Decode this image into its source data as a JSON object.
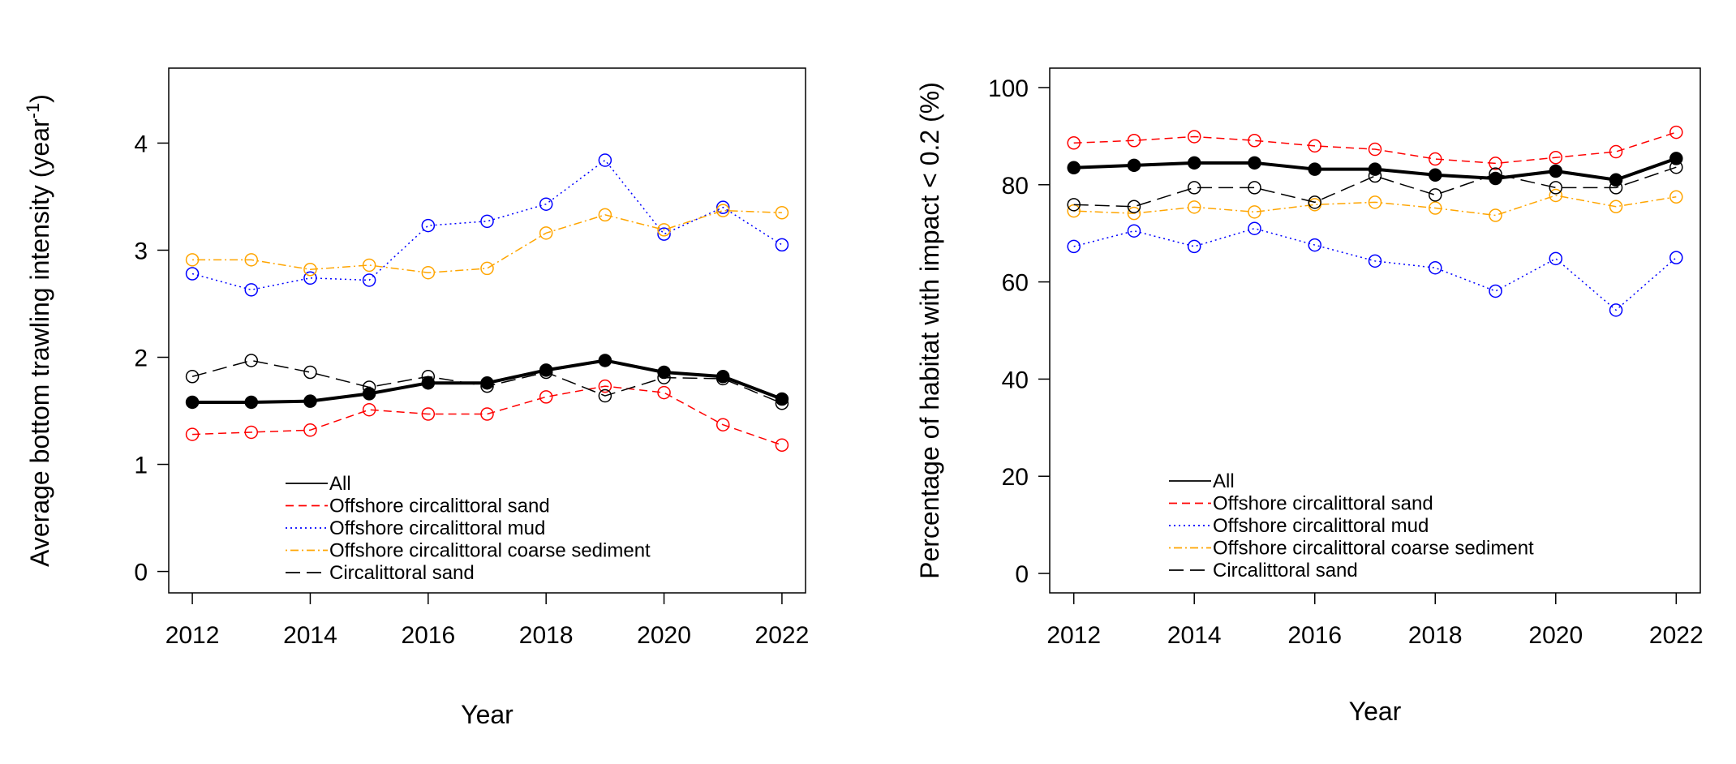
{
  "chart_data": [
    {
      "type": "line",
      "title": "",
      "xlabel": "Year",
      "ylabel": "Average bottom trawling intensity (year",
      "ylabel_sup": "-1",
      "ylabel_close": ")",
      "xlim": [
        2011.6,
        2022.4
      ],
      "ylim": [
        -0.2,
        4.7
      ],
      "xticks": [
        2012,
        2014,
        2016,
        2018,
        2020,
        2022
      ],
      "yticks": [
        0,
        1,
        2,
        3,
        4
      ],
      "legend_position": "bottom-center",
      "x": [
        2012,
        2013,
        2014,
        2015,
        2016,
        2017,
        2018,
        2019,
        2020,
        2021,
        2022
      ],
      "series": [
        {
          "name": "All",
          "color": "#000000",
          "dash": "solid",
          "width": 4,
          "marker": "filled-circle",
          "values": [
            1.58,
            1.58,
            1.59,
            1.66,
            1.76,
            1.76,
            1.88,
            1.97,
            1.86,
            1.82,
            1.61
          ]
        },
        {
          "name": "Offshore circalittoral sand",
          "color": "#ff0000",
          "dash": "dashed",
          "width": 1.5,
          "marker": "open-circle",
          "values": [
            1.28,
            1.3,
            1.32,
            1.51,
            1.47,
            1.47,
            1.63,
            1.73,
            1.67,
            1.37,
            1.18
          ]
        },
        {
          "name": "Offshore circalittoral mud",
          "color": "#0000ff",
          "dash": "dotted",
          "width": 1.5,
          "marker": "open-circle",
          "values": [
            2.78,
            2.63,
            2.74,
            2.72,
            3.23,
            3.27,
            3.43,
            3.84,
            3.15,
            3.4,
            3.05
          ]
        },
        {
          "name": "Offshore circalittoral coarse sediment",
          "color": "#ffa500",
          "dash": "dotdash",
          "width": 1.5,
          "marker": "open-circle",
          "values": [
            2.91,
            2.91,
            2.82,
            2.86,
            2.79,
            2.83,
            3.16,
            3.33,
            3.19,
            3.37,
            3.35
          ]
        },
        {
          "name": "Circalittoral sand",
          "color": "#000000",
          "dash": "longdash",
          "width": 1.5,
          "marker": "open-circle",
          "values": [
            1.82,
            1.97,
            1.86,
            1.72,
            1.82,
            1.73,
            1.86,
            1.64,
            1.81,
            1.8,
            1.57
          ]
        }
      ]
    },
    {
      "type": "line",
      "title": "",
      "xlabel": "Year",
      "ylabel": "Percentage of habitat with impact < 0.2 (%)",
      "xlim": [
        2011.6,
        2022.4
      ],
      "ylim": [
        -4,
        104
      ],
      "xticks": [
        2012,
        2014,
        2016,
        2018,
        2020,
        2022
      ],
      "yticks": [
        0,
        20,
        40,
        60,
        80,
        100
      ],
      "legend_position": "bottom-center",
      "x": [
        2012,
        2013,
        2014,
        2015,
        2016,
        2017,
        2018,
        2019,
        2020,
        2021,
        2022
      ],
      "series": [
        {
          "name": "All",
          "color": "#000000",
          "dash": "solid",
          "width": 4,
          "marker": "filled-circle",
          "values": [
            83.5,
            84.0,
            84.5,
            84.5,
            83.2,
            83.2,
            82.0,
            81.3,
            82.8,
            81.0,
            85.4
          ]
        },
        {
          "name": "Offshore circalittoral sand",
          "color": "#ff0000",
          "dash": "dashed",
          "width": 1.5,
          "marker": "open-circle",
          "values": [
            88.6,
            89.1,
            89.9,
            89.1,
            88.0,
            87.3,
            85.3,
            84.4,
            85.6,
            86.8,
            90.8
          ]
        },
        {
          "name": "Offshore circalittoral mud",
          "color": "#0000ff",
          "dash": "dotted",
          "width": 1.5,
          "marker": "open-circle",
          "values": [
            67.3,
            70.5,
            67.3,
            71.0,
            67.6,
            64.3,
            62.9,
            58.1,
            64.8,
            54.2,
            65.0
          ]
        },
        {
          "name": "Offshore circalittoral coarse sediment",
          "color": "#ffa500",
          "dash": "dotdash",
          "width": 1.5,
          "marker": "open-circle",
          "values": [
            74.6,
            74.1,
            75.4,
            74.4,
            75.9,
            76.4,
            75.2,
            73.7,
            77.8,
            75.5,
            77.5
          ]
        },
        {
          "name": "Circalittoral sand",
          "color": "#000000",
          "dash": "longdash",
          "width": 1.5,
          "marker": "open-circle",
          "values": [
            75.9,
            75.5,
            79.4,
            79.4,
            76.4,
            81.8,
            77.9,
            82.2,
            79.4,
            79.4,
            83.6
          ]
        }
      ]
    }
  ]
}
